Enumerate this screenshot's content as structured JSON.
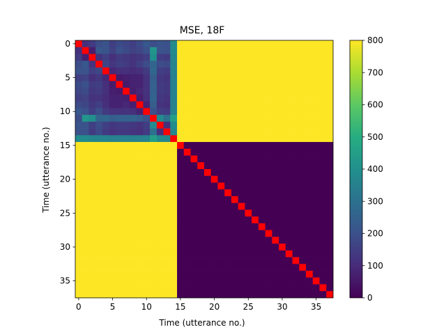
{
  "chart_data": {
    "type": "heatmap",
    "title": "MSE, 18F",
    "xlabel": "Time (utterance no.)",
    "ylabel": "Time (utterance no.)",
    "n": 38,
    "x_ticks": [
      0,
      5,
      10,
      15,
      20,
      25,
      30,
      35
    ],
    "y_ticks": [
      0,
      5,
      10,
      15,
      20,
      25,
      30,
      35
    ],
    "colorbar": {
      "min": 0,
      "max": 800,
      "ticks": [
        0,
        100,
        200,
        300,
        400,
        500,
        600,
        700,
        800
      ],
      "colormap": "viridis"
    },
    "block_split": 15,
    "off_diagonal_block_value": 800,
    "lower_block_value": 0,
    "diagonal_color": "#ff0000",
    "upper_block": [
      [
        0,
        110,
        140,
        190,
        210,
        150,
        180,
        170,
        150,
        180,
        220,
        190,
        210,
        200,
        380
      ],
      [
        110,
        0,
        70,
        220,
        210,
        160,
        200,
        180,
        160,
        170,
        200,
        420,
        210,
        200,
        380
      ],
      [
        140,
        70,
        0,
        120,
        150,
        110,
        140,
        130,
        120,
        130,
        150,
        400,
        150,
        140,
        370
      ],
      [
        190,
        220,
        120,
        0,
        170,
        130,
        150,
        140,
        120,
        150,
        190,
        260,
        190,
        180,
        360
      ],
      [
        210,
        210,
        150,
        170,
        0,
        90,
        110,
        110,
        100,
        110,
        140,
        270,
        150,
        140,
        360
      ],
      [
        150,
        160,
        110,
        130,
        90,
        0,
        60,
        70,
        80,
        80,
        120,
        240,
        130,
        120,
        350
      ],
      [
        180,
        200,
        140,
        150,
        110,
        60,
        0,
        60,
        80,
        80,
        120,
        250,
        140,
        130,
        350
      ],
      [
        170,
        180,
        130,
        140,
        110,
        70,
        60,
        0,
        70,
        90,
        120,
        250,
        140,
        130,
        350
      ],
      [
        150,
        160,
        120,
        120,
        100,
        80,
        80,
        70,
        0,
        70,
        110,
        260,
        130,
        120,
        350
      ],
      [
        180,
        170,
        130,
        150,
        110,
        80,
        80,
        90,
        70,
        0,
        80,
        240,
        120,
        110,
        350
      ],
      [
        220,
        200,
        150,
        190,
        140,
        120,
        120,
        120,
        110,
        80,
        0,
        200,
        150,
        140,
        360
      ],
      [
        190,
        420,
        400,
        260,
        270,
        240,
        250,
        250,
        260,
        240,
        200,
        0,
        380,
        300,
        450
      ],
      [
        210,
        210,
        150,
        190,
        150,
        130,
        140,
        140,
        130,
        120,
        150,
        380,
        0,
        110,
        380
      ],
      [
        200,
        200,
        140,
        180,
        140,
        120,
        130,
        130,
        120,
        110,
        140,
        300,
        110,
        0,
        370
      ],
      [
        380,
        380,
        370,
        360,
        360,
        350,
        350,
        350,
        350,
        350,
        360,
        450,
        380,
        370,
        0
      ]
    ]
  }
}
